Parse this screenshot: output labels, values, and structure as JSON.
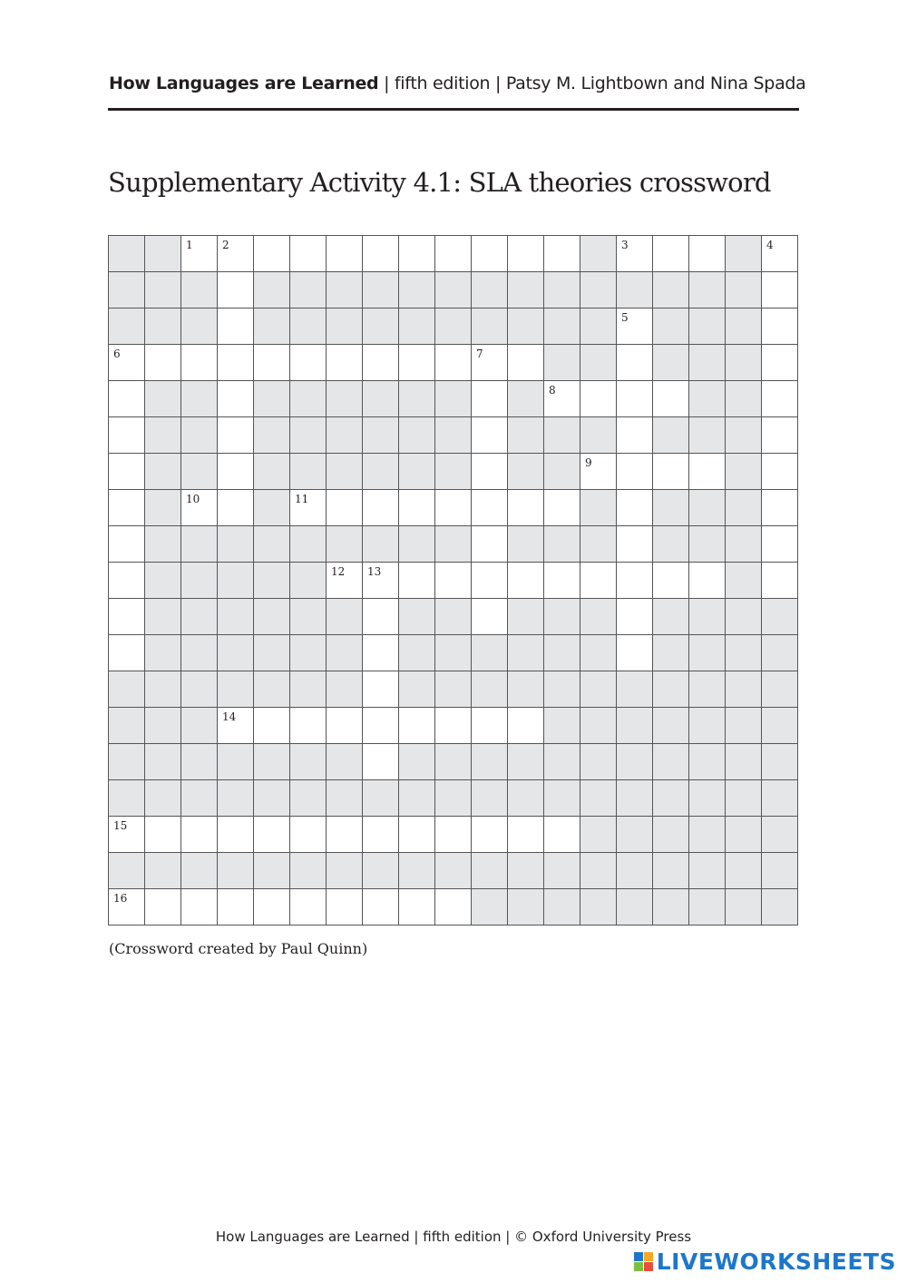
{
  "header": {
    "book_title": "How Languages are Learned",
    "rest": " | fifth edition | Patsy M. Lightbown and Nina Spada"
  },
  "title": "Supplementary Activity 4.1: SLA theories crossword",
  "crossword": {
    "rows": [
      "##...........#...#.",
      "###.##############.",
      "###.##########.###.",
      "............##.###.",
      ".##.######.#....##.",
      ".##.######.###.###.",
      ".##.######.##....#.",
      ".#..#........#.###.",
      ".#########.###.###.",
      ".#####...........#.",
      ".######.##.###.####",
      ".######.######.####",
      "#######.###########",
      "###.........#######",
      "#######.###########",
      "###################",
      ".............######",
      "###################",
      "..........#########"
    ],
    "numbers": [
      [
        0,
        2,
        "1"
      ],
      [
        0,
        3,
        "2"
      ],
      [
        0,
        14,
        "3"
      ],
      [
        0,
        18,
        "4"
      ],
      [
        2,
        14,
        "5"
      ],
      [
        3,
        0,
        "6"
      ],
      [
        3,
        10,
        "7"
      ],
      [
        4,
        12,
        "8"
      ],
      [
        6,
        13,
        "9"
      ],
      [
        7,
        2,
        "10"
      ],
      [
        7,
        5,
        "11"
      ],
      [
        9,
        6,
        "12"
      ],
      [
        9,
        7,
        "13"
      ],
      [
        13,
        3,
        "14"
      ],
      [
        16,
        0,
        "15"
      ],
      [
        18,
        0,
        "16"
      ]
    ],
    "block_color": "#e5e6e8"
  },
  "credit": "(Crossword created by Paul Quinn)",
  "footer": "How Languages are Learned | fifth edition | © Oxford University Press",
  "logo": "LIVEWORKSHEETS"
}
